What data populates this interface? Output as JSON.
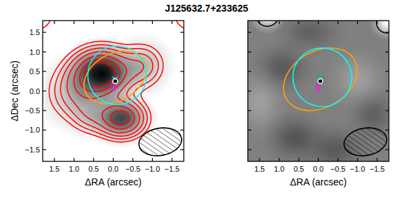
{
  "chart_data": {
    "type": "image",
    "title": "J125632.7+233625",
    "panels": [
      {
        "xlabel": "ΔRA (arcsec)",
        "ylabel": "ΔDec (arcsec)",
        "xlim": [
          1.8,
          -1.8
        ],
        "ylim": [
          -1.8,
          1.8
        ],
        "xticks": [
          1.5,
          {
            "value": 1,
            "label": "1.0"
          },
          0.5,
          {
            "value": 0,
            "label": "0.0"
          },
          {
            "value": -0.5,
            "label": "−0.5"
          },
          {
            "value": -1,
            "label": "−1.0"
          },
          {
            "value": -1.5,
            "label": "−1.5"
          }
        ],
        "yticks": [
          {
            "value": -1.5,
            "label": "−1.5"
          },
          {
            "value": -1,
            "label": "−1.0"
          },
          {
            "value": -0.5,
            "label": "−0.5"
          },
          {
            "value": 0,
            "label": "0.0"
          },
          0.5,
          {
            "value": 1,
            "label": "1.0"
          },
          1.5
        ],
        "image_range": [
          0,
          1
        ],
        "components": [
          {
            "x": 0.3,
            "y": 0.45,
            "sx": 0.45,
            "sy": 0.38,
            "amp": 1
          },
          {
            "x": -0.2,
            "y": -0.7,
            "sx": 0.38,
            "sy": 0.3,
            "amp": 0.75
          },
          {
            "x": -0.75,
            "y": 0.65,
            "sx": 0.35,
            "sy": 0.35,
            "amp": 0.3
          },
          {
            "x": 0.95,
            "y": -0.05,
            "sx": 0.45,
            "sy": 0.45,
            "amp": 0.3
          },
          {
            "x": 0.6,
            "y": -0.6,
            "sx": 0.3,
            "sy": 0.3,
            "amp": 0.2
          },
          {
            "x": 1.95,
            "y": 1.95,
            "sx": 0.25,
            "sy": 0.25,
            "amp": -0.3
          },
          {
            "x": -1.95,
            "y": 1.95,
            "sx": 0.25,
            "sy": 0.25,
            "amp": -0.3
          }
        ],
        "contour_levels": [
          -0.1,
          0.1,
          0.16,
          0.24,
          0.35,
          0.5,
          0.65,
          0.8
        ],
        "contour_color": "red",
        "ellipses": [
          {
            "x": -0.05,
            "y": 0.35,
            "a": 0.85,
            "b": 0.6,
            "pa": 300,
            "color": "orange"
          },
          {
            "x": -0.1,
            "y": 0.4,
            "a": 0.75,
            "b": 0.75,
            "pa": 0,
            "color": "cyan"
          }
        ],
        "markers": [
          {
            "x": 0.0,
            "y": 0.1,
            "marker": "ellipse",
            "color": "magenta"
          },
          {
            "x": -0.05,
            "y": 0.3,
            "marker": "star",
            "color": "cyan"
          },
          {
            "x": -0.05,
            "y": 0.25,
            "marker": "circle",
            "color": "black"
          }
        ],
        "beam": {
          "x": -1.2,
          "y": -1.3,
          "a": 0.55,
          "b": 0.35,
          "pa": 280,
          "color": "black"
        }
      },
      {
        "xlabel": "ΔRA (arcsec)",
        "tick_labels": "x",
        "xlim": [
          1.8,
          -1.8
        ],
        "ylim": [
          -1.8,
          1.8
        ],
        "xticks": [
          1.5,
          {
            "value": 1,
            "label": "1.0"
          },
          0.5,
          {
            "value": 0,
            "label": "0.0"
          },
          {
            "value": -0.5,
            "label": "−0.5"
          },
          {
            "value": -1,
            "label": "−1.0"
          },
          {
            "value": -1.5,
            "label": "−1.5"
          }
        ],
        "yticks": [
          -1.5,
          -1,
          -0.5,
          0,
          0.5,
          1,
          1.5
        ],
        "image_range": [
          -0.1,
          0.1
        ],
        "components": [
          {
            "x": 0.9,
            "y": 0.6,
            "sx": 0.35,
            "sy": 0.3,
            "amp": 0.06
          },
          {
            "x": 0.6,
            "y": -1.2,
            "sx": 0.35,
            "sy": 0.3,
            "amp": 0.07
          },
          {
            "x": -0.4,
            "y": -1.5,
            "sx": 0.4,
            "sy": 0.3,
            "amp": 0.06
          },
          {
            "x": 1.5,
            "y": -0.3,
            "sx": 0.3,
            "sy": 0.4,
            "amp": -0.05
          },
          {
            "x": -1.0,
            "y": 0.3,
            "sx": 0.35,
            "sy": 0.35,
            "amp": -0.05
          },
          {
            "x": -1.4,
            "y": -0.6,
            "sx": 0.3,
            "sy": 0.3,
            "amp": 0.05
          },
          {
            "x": 0.2,
            "y": 1.5,
            "sx": 0.4,
            "sy": 0.25,
            "amp": 0.05
          },
          {
            "x": 1.3,
            "y": 1.95,
            "sx": 0.2,
            "sy": 0.2,
            "amp": -0.3
          },
          {
            "x": -1.75,
            "y": 1.75,
            "sx": 0.18,
            "sy": 0.18,
            "amp": -0.3
          }
        ],
        "contour_levels": [
          -0.1
        ],
        "contour_color": "black",
        "ellipses": [
          {
            "x": -0.05,
            "y": 0.3,
            "a": 1.0,
            "b": 0.72,
            "pa": 300,
            "color": "orange"
          },
          {
            "x": -0.1,
            "y": 0.35,
            "a": 0.75,
            "b": 0.75,
            "pa": 0,
            "color": "cyan"
          }
        ],
        "markers": [
          {
            "x": 0.0,
            "y": 0.1,
            "marker": "ellipse",
            "color": "magenta"
          },
          {
            "x": -0.05,
            "y": 0.3,
            "marker": "star",
            "color": "cyan"
          },
          {
            "x": -0.05,
            "y": 0.25,
            "marker": "circle",
            "color": "black"
          }
        ],
        "beam": {
          "x": -1.2,
          "y": -1.3,
          "a": 0.55,
          "b": 0.35,
          "pa": 280,
          "color": "black"
        }
      }
    ]
  }
}
